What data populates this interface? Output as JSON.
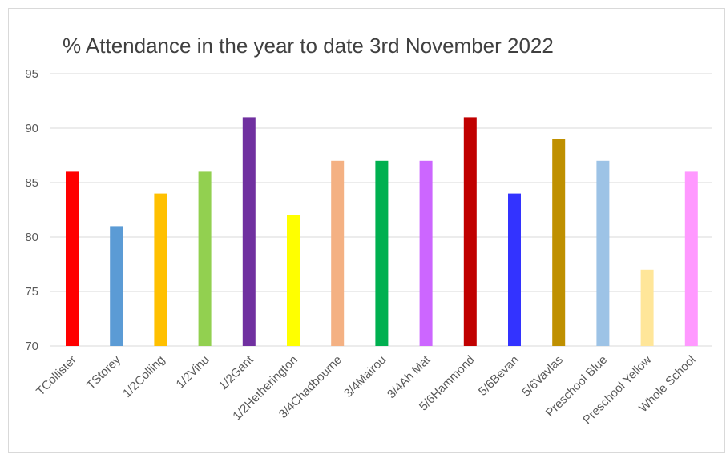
{
  "chart_data": {
    "type": "bar",
    "title": "% Attendance in the year to date 3rd November 2022",
    "xlabel": "",
    "ylabel": "",
    "ylim": [
      70,
      95
    ],
    "yticks": [
      70,
      75,
      80,
      85,
      90,
      95
    ],
    "grid": true,
    "legend": "none",
    "categories": [
      "TCollister",
      "TStorey",
      "1/2Colling",
      "1/2Vinu",
      "1/2Gant",
      "1/2Hetherington",
      "3/4Chadbourne",
      "3/4Mairou",
      "3/4Ah Mat",
      "5/6Hammond",
      "5/6Bevan",
      "5/6Vavlas",
      "Preschool Blue",
      "Preschool Yellow",
      "Whole School"
    ],
    "values": [
      86,
      81,
      84,
      86,
      91,
      82,
      87,
      87,
      87,
      91,
      84,
      89,
      87,
      77,
      86
    ],
    "colors": [
      "#ff0000",
      "#5b9bd5",
      "#ffc000",
      "#92d050",
      "#7030a0",
      "#ffff00",
      "#f4b183",
      "#00b050",
      "#cc66ff",
      "#c00000",
      "#3333ff",
      "#bf9000",
      "#9dc3e6",
      "#ffe699",
      "#ff99ff"
    ]
  }
}
